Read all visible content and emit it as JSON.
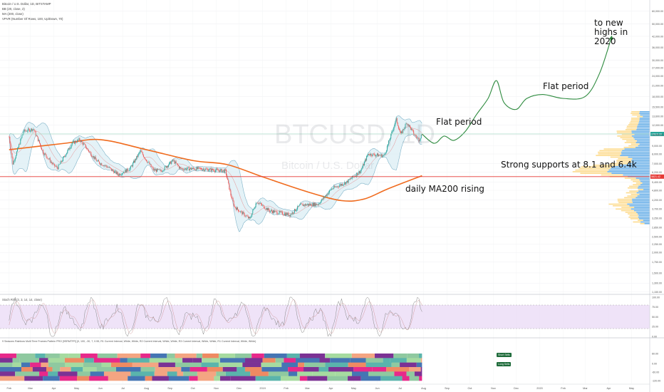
{
  "header": {
    "symbol_line": "Bitcoin / U.S. Dollar, 1D, BITSTAMP",
    "indicators": [
      "BB (20, close, 2)",
      "MA (200, close)",
      "VPVR (Number Of Rows, 100, Up/Down, 70)"
    ]
  },
  "watermark": {
    "ticker": "BTCUSD, 1D",
    "name": "Bitcoin / U.S. Dollar"
  },
  "annotations": {
    "flat1": "Flat period",
    "flat2": "Flat period",
    "new_highs": "to new highs in 2020",
    "supports": "Strong supports at 8.1 and 6.4k",
    "ma200": "daily MA200 rising"
  },
  "panes": {
    "stoch_label": "Stoch RSI (3, 3, 14, 14, close)",
    "rainbow_label": "9 Seasons Rainbow Multi Time Frames Pattern PRO [9SRMTFR] (0, 100, -30, 7, 0.55, R1 Current Interval, White, White, R2 Current Interval, White, White, R3 Current Interval, White, White, R1 Current Interval, White, White)",
    "short_tag": "Short Sells",
    "long_tag": "Long Sells"
  },
  "colors": {
    "candle_up": "#26a69a",
    "candle_down": "#ef5350",
    "bb_fill": "#d9ecf3",
    "bb_line": "#7fb3c8",
    "ma200": "#f06b1e",
    "projection": "#2e8b3f",
    "support_line": "#e53935",
    "price_line": "#9fd9c0",
    "stoch": "#888888",
    "stoch_fill": "#e8d7f5"
  },
  "chart_data": {
    "type": "candlestick",
    "symbol": "BTCUSD",
    "interval": "1D",
    "y_scale": "log",
    "ylim": [
      1120,
      70000
    ],
    "x_range": [
      "2018-02",
      "2020-06"
    ],
    "x_ticks": [
      "Feb",
      "Mar",
      "Apr",
      "May",
      "Jun",
      "Jul",
      "Aug",
      "Sep",
      "Oct",
      "Nov",
      "Dec",
      "2019",
      "Feb",
      "Mar",
      "Apr",
      "May",
      "Jun",
      "Jul",
      "Aug",
      "Sep",
      "Oct",
      "Nov",
      "Dec",
      "2020",
      "Feb",
      "Mar",
      "Apr",
      "May"
    ],
    "y_ticks": [
      1150,
      1300,
      1500,
      1750,
      2000,
      2250,
      2500,
      2850,
      3250,
      3700,
      4200,
      4800,
      5400,
      6200,
      7000,
      8000,
      9000,
      10500,
      12000,
      13600,
      15500,
      18000,
      21000,
      24000,
      27000,
      30000,
      36000,
      42000,
      50000,
      60000
    ],
    "price_badges": {
      "current": "10610.29",
      "support": "5821.42"
    },
    "support_level": 5821,
    "price_path": [
      [
        "2018-02-01",
        10200
      ],
      [
        "2018-02-06",
        7000
      ],
      [
        "2018-02-20",
        11000
      ],
      [
        "2018-03-05",
        11400
      ],
      [
        "2018-03-18",
        8200
      ],
      [
        "2018-04-01",
        6800
      ],
      [
        "2018-04-06",
        6600
      ],
      [
        "2018-04-25",
        9300
      ],
      [
        "2018-05-05",
        9800
      ],
      [
        "2018-05-28",
        7200
      ],
      [
        "2018-06-10",
        6700
      ],
      [
        "2018-06-25",
        6000
      ],
      [
        "2018-07-10",
        6500
      ],
      [
        "2018-07-24",
        8300
      ],
      [
        "2018-08-10",
        6400
      ],
      [
        "2018-08-20",
        6300
      ],
      [
        "2018-09-05",
        7300
      ],
      [
        "2018-09-15",
        6500
      ],
      [
        "2018-10-10",
        6500
      ],
      [
        "2018-11-13",
        6300
      ],
      [
        "2018-11-20",
        4500
      ],
      [
        "2018-11-25",
        3800
      ],
      [
        "2018-12-15",
        3200
      ],
      [
        "2018-12-24",
        4100
      ],
      [
        "2019-01-10",
        3600
      ],
      [
        "2019-02-06",
        3400
      ],
      [
        "2019-02-20",
        3900
      ],
      [
        "2019-03-15",
        3950
      ],
      [
        "2019-04-02",
        4900
      ],
      [
        "2019-04-22",
        5400
      ],
      [
        "2019-05-10",
        6300
      ],
      [
        "2019-05-20",
        8000
      ],
      [
        "2019-06-10",
        7800
      ],
      [
        "2019-06-26",
        13000
      ],
      [
        "2019-07-02",
        10500
      ],
      [
        "2019-07-10",
        12500
      ],
      [
        "2019-07-20",
        10500
      ],
      [
        "2019-07-26",
        9800
      ],
      [
        "2019-07-30",
        10600
      ]
    ],
    "ma200_path": [
      [
        "2018-02-01",
        8500
      ],
      [
        "2018-04-15",
        9300
      ],
      [
        "2018-06-01",
        9800
      ],
      [
        "2018-08-01",
        8500
      ],
      [
        "2018-10-01",
        7300
      ],
      [
        "2018-11-15",
        6900
      ],
      [
        "2019-01-01",
        5800
      ],
      [
        "2019-03-01",
        4700
      ],
      [
        "2019-04-15",
        4150
      ],
      [
        "2019-05-15",
        4250
      ],
      [
        "2019-06-15",
        4900
      ],
      [
        "2019-07-30",
        5900
      ]
    ],
    "projection_path": [
      [
        "2019-07-30",
        10600
      ],
      [
        "2019-08-15",
        9300
      ],
      [
        "2019-08-28",
        10300
      ],
      [
        "2019-09-10",
        9700
      ],
      [
        "2019-09-25",
        11000
      ],
      [
        "2019-10-10",
        14000
      ],
      [
        "2019-10-25",
        17500
      ],
      [
        "2019-11-05",
        22500
      ],
      [
        "2019-11-15",
        16500
      ],
      [
        "2019-12-01",
        15000
      ],
      [
        "2019-12-15",
        17500
      ],
      [
        "2020-01-05",
        18500
      ],
      [
        "2020-02-01",
        17500
      ],
      [
        "2020-03-01",
        18000
      ],
      [
        "2020-03-20",
        25000
      ],
      [
        "2020-04-05",
        42000
      ]
    ],
    "vpvr": "volume profile histogram on the right side, densest near 6.4k and 8.1k",
    "stoch_rsi": {
      "levels": [
        100,
        80,
        50,
        20,
        0
      ],
      "overbought": 80,
      "oversold": 20
    },
    "rainbow_pane": {
      "y_ticks": [
        60,
        0,
        -60,
        -120
      ]
    }
  }
}
